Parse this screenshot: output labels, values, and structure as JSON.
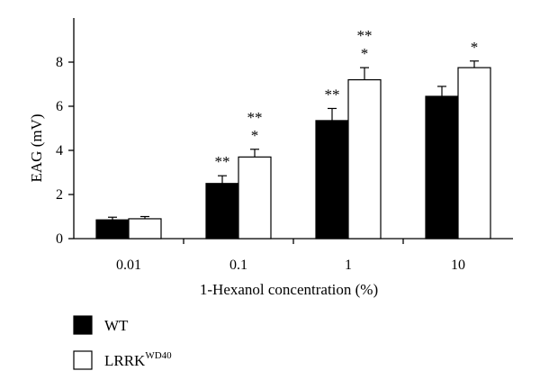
{
  "chart_data": {
    "type": "bar",
    "xlabel": "1-Hexanol concentration (%)",
    "ylabel": "EAG (mV)",
    "ylim": [
      0,
      10
    ],
    "yticks": [
      0,
      2,
      4,
      6,
      8
    ],
    "categories": [
      "0.01",
      "0.1",
      "1",
      "10"
    ],
    "series": [
      {
        "name": "WT",
        "sup": "",
        "fill": "#000000",
        "values": [
          0.85,
          2.5,
          5.35,
          6.45
        ],
        "errors": [
          0.12,
          0.35,
          0.55,
          0.45
        ],
        "stars": [
          [],
          [
            "**"
          ],
          [
            "**"
          ],
          []
        ]
      },
      {
        "name": "LRRK",
        "sup": "WD40",
        "fill": "#ffffff",
        "values": [
          0.9,
          3.7,
          7.2,
          7.75
        ],
        "errors": [
          0.1,
          0.35,
          0.55,
          0.3
        ],
        "stars": [
          [],
          [
            "**",
            "*"
          ],
          [
            "**",
            "*"
          ],
          [
            "*"
          ]
        ]
      }
    ],
    "grid": false,
    "legend_position": "bottom-left"
  }
}
